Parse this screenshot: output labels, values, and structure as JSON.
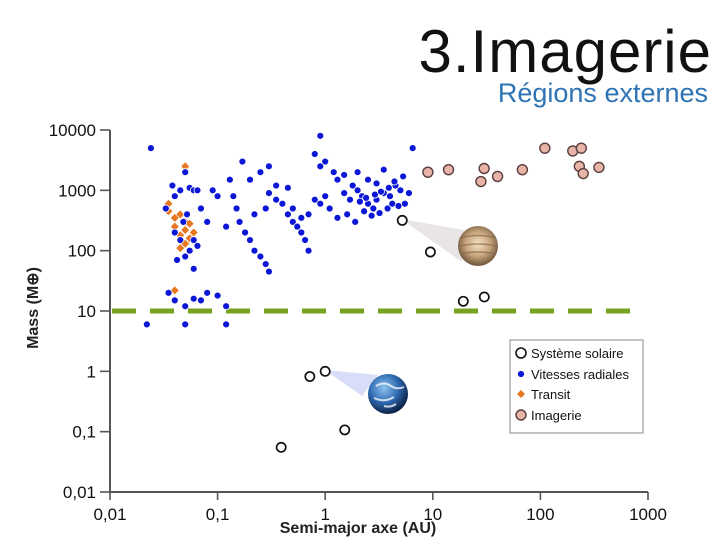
{
  "header": {
    "title": "3.Imagerie",
    "subtitle": "Régions externes"
  },
  "colors": {
    "solar": "#111111",
    "rv": "#0b16d6",
    "transit": "#e87722",
    "imaging": "#e8b4a8",
    "threshold": "#76a31f"
  },
  "chart_data": {
    "type": "scatter",
    "xlabel": "Semi-major axe (AU)",
    "ylabel": "Mass (M⊕)",
    "x_scale": "log",
    "y_scale": "log",
    "xlim": [
      0.01,
      1000
    ],
    "ylim": [
      0.01,
      10000
    ],
    "x_ticks": [
      {
        "value": 0.01,
        "label": "0,01"
      },
      {
        "value": 0.1,
        "label": "0,1"
      },
      {
        "value": 1,
        "label": "1"
      },
      {
        "value": 10,
        "label": "10"
      },
      {
        "value": 100,
        "label": "100"
      },
      {
        "value": 1000,
        "label": "1000"
      }
    ],
    "y_ticks": [
      {
        "value": 10000,
        "label": "10000"
      },
      {
        "value": 1000,
        "label": "1000"
      },
      {
        "value": 100,
        "label": "100"
      },
      {
        "value": 10,
        "label": "10"
      },
      {
        "value": 1,
        "label": "1"
      },
      {
        "value": 0.1,
        "label": "0,1"
      },
      {
        "value": 0.01,
        "label": "0,01"
      }
    ],
    "threshold_line": {
      "y": 10,
      "style": "dashed"
    },
    "legend": {
      "position": "bottom-right"
    },
    "series": [
      {
        "name": "Système solaire",
        "marker": "open-circle",
        "points": [
          [
            0.39,
            0.055
          ],
          [
            0.72,
            0.82
          ],
          [
            1.0,
            1.0
          ],
          [
            1.52,
            0.107
          ],
          [
            5.2,
            318
          ],
          [
            9.5,
            95
          ],
          [
            19.2,
            14.5
          ],
          [
            30.1,
            17.1
          ]
        ]
      },
      {
        "name": "Vitesses radiales",
        "marker": "filled-circle",
        "points": [
          [
            0.024,
            5000
          ],
          [
            0.022,
            6
          ],
          [
            0.05,
            2000
          ],
          [
            0.05,
            6
          ],
          [
            0.038,
            1200
          ],
          [
            0.045,
            1000
          ],
          [
            0.055,
            1100
          ],
          [
            0.06,
            1000
          ],
          [
            0.065,
            1000
          ],
          [
            0.033,
            500
          ],
          [
            0.04,
            800
          ],
          [
            0.048,
            300
          ],
          [
            0.052,
            400
          ],
          [
            0.07,
            500
          ],
          [
            0.08,
            300
          ],
          [
            0.09,
            1000
          ],
          [
            0.1,
            800
          ],
          [
            0.12,
            250
          ],
          [
            0.04,
            200
          ],
          [
            0.045,
            150
          ],
          [
            0.06,
            150
          ],
          [
            0.055,
            100
          ],
          [
            0.065,
            120
          ],
          [
            0.05,
            80
          ],
          [
            0.042,
            70
          ],
          [
            0.06,
            50
          ],
          [
            0.035,
            20
          ],
          [
            0.04,
            15
          ],
          [
            0.05,
            12
          ],
          [
            0.06,
            16
          ],
          [
            0.07,
            15
          ],
          [
            0.08,
            20
          ],
          [
            0.1,
            18
          ],
          [
            0.12,
            12
          ],
          [
            0.13,
            1500
          ],
          [
            0.14,
            800
          ],
          [
            0.15,
            500
          ],
          [
            0.16,
            300
          ],
          [
            0.18,
            200
          ],
          [
            0.2,
            150
          ],
          [
            0.22,
            100
          ],
          [
            0.25,
            80
          ],
          [
            0.28,
            60
          ],
          [
            0.3,
            45
          ],
          [
            0.17,
            3000
          ],
          [
            0.2,
            1500
          ],
          [
            0.25,
            2000
          ],
          [
            0.3,
            900
          ],
          [
            0.35,
            1200
          ],
          [
            0.4,
            600
          ],
          [
            0.45,
            400
          ],
          [
            0.5,
            300
          ],
          [
            0.55,
            250
          ],
          [
            0.6,
            200
          ],
          [
            0.65,
            150
          ],
          [
            0.7,
            100
          ],
          [
            0.8,
            4000
          ],
          [
            0.9,
            2500
          ],
          [
            1.0,
            3000
          ],
          [
            1.2,
            2000
          ],
          [
            1.3,
            1500
          ],
          [
            1.5,
            1800
          ],
          [
            1.8,
            1200
          ],
          [
            2.0,
            1000
          ],
          [
            2.2,
            800
          ],
          [
            2.5,
            600
          ],
          [
            2.8,
            500
          ],
          [
            3.0,
            700
          ],
          [
            3.5,
            900
          ],
          [
            4.0,
            800
          ],
          [
            4.5,
            1200
          ],
          [
            5.0,
            1000
          ],
          [
            5.5,
            600
          ],
          [
            6.0,
            900
          ],
          [
            1.1,
            500
          ],
          [
            1.3,
            350
          ],
          [
            1.6,
            400
          ],
          [
            1.9,
            300
          ],
          [
            2.3,
            450
          ],
          [
            2.7,
            380
          ],
          [
            3.2,
            420
          ],
          [
            3.8,
            500
          ],
          [
            4.2,
            600
          ],
          [
            4.8,
            550
          ],
          [
            0.8,
            700
          ],
          [
            0.9,
            600
          ],
          [
            1.0,
            800
          ],
          [
            0.7,
            400
          ],
          [
            0.6,
            350
          ],
          [
            0.5,
            500
          ],
          [
            2.0,
            2000
          ],
          [
            2.5,
            1500
          ],
          [
            3.0,
            1300
          ],
          [
            3.5,
            2200
          ],
          [
            1.5,
            900
          ],
          [
            1.7,
            700
          ],
          [
            2.1,
            650
          ],
          [
            2.4,
            750
          ],
          [
            2.9,
            850
          ],
          [
            3.3,
            950
          ],
          [
            3.9,
            1100
          ],
          [
            4.4,
            1400
          ],
          [
            5.3,
            1700
          ],
          [
            6.5,
            5000
          ],
          [
            0.3,
            2500
          ],
          [
            0.12,
            6
          ],
          [
            0.9,
            8000
          ],
          [
            0.45,
            1100
          ],
          [
            0.35,
            700
          ],
          [
            0.28,
            500
          ],
          [
            0.22,
            400
          ]
        ]
      },
      {
        "name": "Transit",
        "marker": "diamond",
        "points": [
          [
            0.05,
            2500
          ],
          [
            0.06,
            1000
          ],
          [
            0.035,
            600
          ],
          [
            0.035,
            450
          ],
          [
            0.045,
            400
          ],
          [
            0.04,
            350
          ],
          [
            0.05,
            300
          ],
          [
            0.055,
            280
          ],
          [
            0.04,
            250
          ],
          [
            0.05,
            220
          ],
          [
            0.06,
            200
          ],
          [
            0.045,
            180
          ],
          [
            0.055,
            160
          ],
          [
            0.05,
            130
          ],
          [
            0.045,
            110
          ],
          [
            0.04,
            22
          ]
        ]
      },
      {
        "name": "Imagerie",
        "marker": "pink-circle",
        "points": [
          [
            9,
            2000
          ],
          [
            14,
            2200
          ],
          [
            30,
            2300
          ],
          [
            28,
            1400
          ],
          [
            40,
            1700
          ],
          [
            68,
            2200
          ],
          [
            110,
            5000
          ],
          [
            200,
            4500
          ],
          [
            230,
            2500
          ],
          [
            240,
            5000
          ],
          [
            250,
            1900
          ],
          [
            350,
            2400
          ]
        ]
      }
    ]
  }
}
